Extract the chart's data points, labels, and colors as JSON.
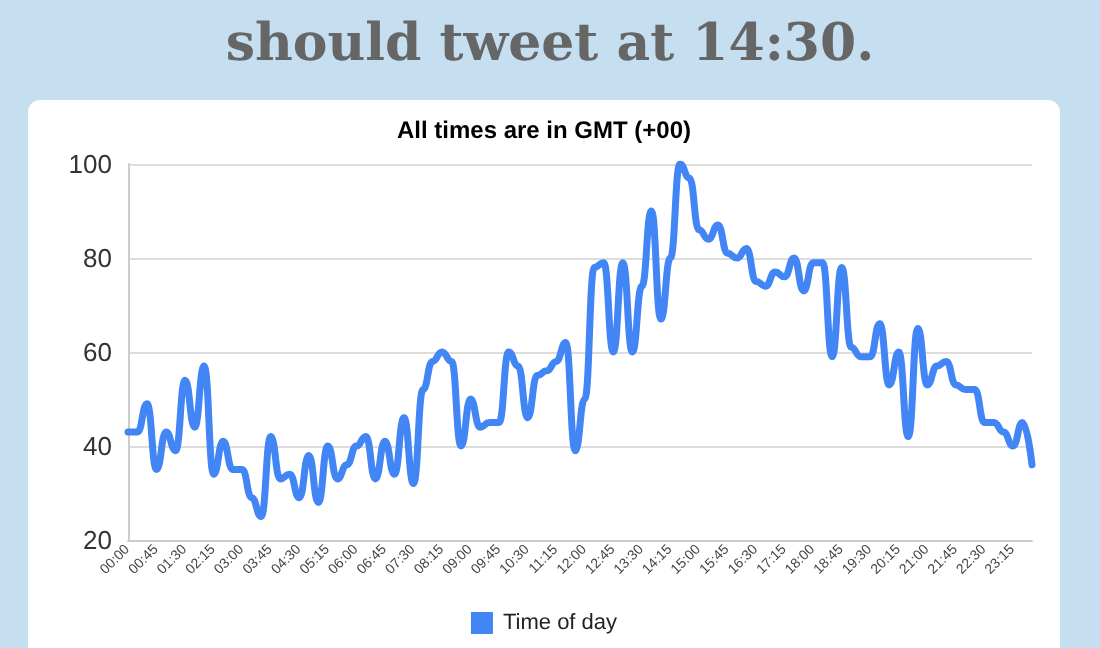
{
  "chart_data": {
    "type": "line",
    "title": "should tweet at 14:30.",
    "subtitle": "All times are in GMT (+00)",
    "categories": [
      "00:00",
      null,
      null,
      "00:45",
      null,
      null,
      "01:30",
      null,
      null,
      "02:15",
      null,
      null,
      "03:00",
      null,
      null,
      "03:45",
      null,
      null,
      "04:30",
      null,
      null,
      "05:15",
      null,
      null,
      "06:00",
      null,
      null,
      "06:45",
      null,
      null,
      "07:30",
      null,
      null,
      "08:15",
      null,
      null,
      "09:00",
      null,
      null,
      "09:45",
      null,
      null,
      "10:30",
      null,
      null,
      "11:15",
      null,
      null,
      "12:00",
      null,
      null,
      "12:45",
      null,
      null,
      "13:30",
      null,
      null,
      "14:15",
      null,
      null,
      "15:00",
      null,
      null,
      "15:45",
      null,
      null,
      "16:30",
      null,
      null,
      "17:15",
      null,
      null,
      "18:00",
      null,
      null,
      "18:45",
      null,
      null,
      "19:30",
      null,
      null,
      "20:15",
      null,
      null,
      "21:00",
      null,
      null,
      "21:45",
      null,
      null,
      "22:30",
      null,
      null,
      "23:15",
      null,
      null
    ],
    "series": [
      {
        "name": "Time of day",
        "color": "#4285f4",
        "values": [
          43,
          43,
          49,
          35,
          43,
          39,
          54,
          44,
          57,
          34,
          41,
          35,
          35,
          29,
          25,
          42,
          33,
          34,
          29,
          38,
          28,
          40,
          33,
          36,
          40,
          42,
          33,
          41,
          34,
          46,
          32,
          52,
          58,
          60,
          58,
          40,
          50,
          44,
          45,
          45,
          60,
          57,
          46,
          55,
          56,
          58,
          62,
          39,
          50,
          78,
          79,
          60,
          79,
          60,
          74,
          90,
          67,
          80,
          100,
          97,
          86,
          84,
          87,
          81,
          80,
          82,
          75,
          74,
          77,
          76,
          80,
          73,
          79,
          79,
          59,
          78,
          61,
          59,
          59,
          66,
          53,
          60,
          42,
          65,
          53,
          57,
          58,
          53,
          52,
          52,
          45,
          45,
          43,
          40,
          45,
          36
        ]
      }
    ],
    "ylim": [
      20,
      100
    ],
    "yticks": [
      20,
      40,
      60,
      80,
      100
    ],
    "grid": "y",
    "legend": "bottom",
    "marker": "none",
    "line_style": "solid"
  }
}
